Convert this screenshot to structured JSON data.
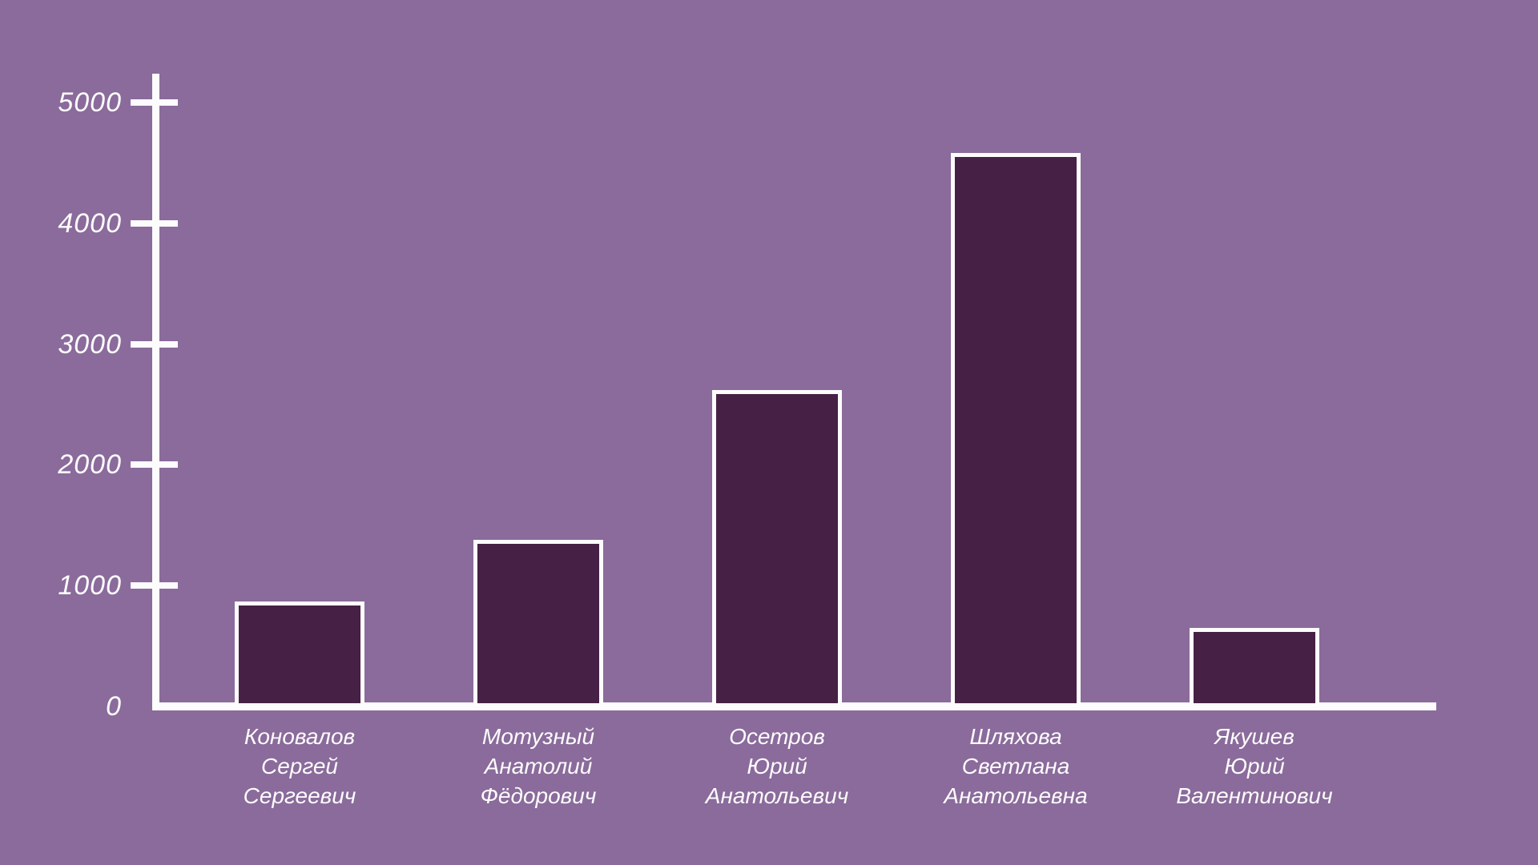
{
  "chart_data": {
    "type": "bar",
    "title": "",
    "xlabel": "",
    "ylabel": "",
    "categories": [
      [
        "Коновалов",
        "Сергей",
        "Сергеевич"
      ],
      [
        "Мотузный",
        "Анатолий",
        "Фёдорович"
      ],
      [
        "Осетров",
        "Юрий",
        "Анатольевич"
      ],
      [
        "Шляхова",
        "Светлана",
        "Анатольевна"
      ],
      [
        "Якушев",
        "Юрий",
        "Валентинович"
      ]
    ],
    "values": [
      870,
      1380,
      2620,
      4580,
      650
    ],
    "y_ticks": [
      0,
      1000,
      2000,
      3000,
      4000,
      5000
    ],
    "y_tick_labels": [
      "0",
      "1000",
      "2000",
      "3000",
      "4000",
      "5000"
    ],
    "ylim": [
      0,
      5000
    ],
    "grid": false,
    "legend": "none",
    "colors": {
      "background": "#8a6b9b",
      "bar_fill": "#472145",
      "bar_border": "#fdfcfd",
      "axis": "#fdfcfd",
      "text": "#fdfcfd"
    }
  }
}
